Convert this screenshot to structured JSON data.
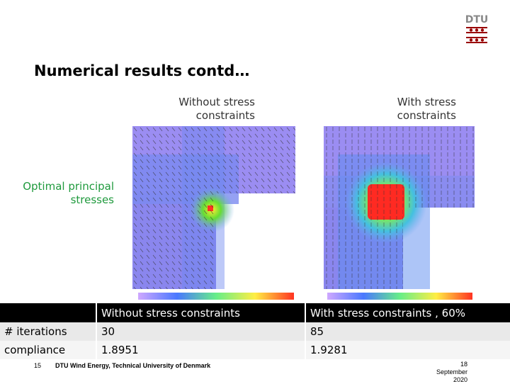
{
  "slide": {
    "title": "Numerical results contd…",
    "column_left_heading": "Without stress constraints",
    "column_right_heading": "With stress constraints",
    "side_label": "Optimal principal stresses",
    "logo_text": "DTU"
  },
  "table": {
    "headers": [
      "",
      "Without stress constraints",
      "With stress constraints , 60%"
    ],
    "rows": [
      {
        "label": "# iterations",
        "without": "30",
        "with": "85"
      },
      {
        "label": "compliance",
        "without": "1.8951",
        "with": "1.9281"
      }
    ]
  },
  "footer": {
    "slide_number": "15",
    "institution": "DTU Wind Energy, Technical University of Denmark",
    "date_line1": "18",
    "date_line2": "September",
    "date_line3": "2020"
  },
  "colors": {
    "label_green": "#1f9a3d",
    "dtu_red": "#990000",
    "header_black": "#000000"
  }
}
